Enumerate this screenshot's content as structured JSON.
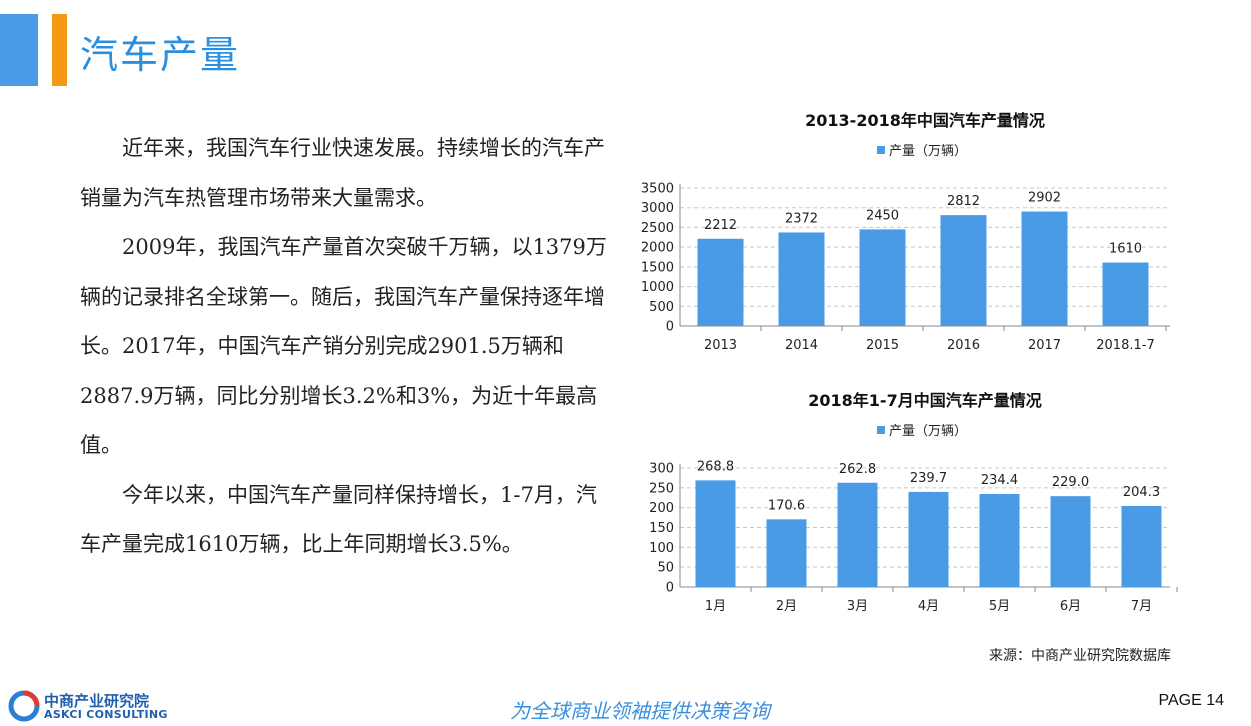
{
  "header": {
    "title": "汽车产量"
  },
  "body": {
    "paragraphs": [
      "近年来，我国汽车行业快速发展。持续增长的汽车产销量为汽车热管理市场带来大量需求。",
      "2009年，我国汽车产量首次突破千万辆，以1379万辆的记录排名全球第一。随后，我国汽车产量保持逐年增长。2017年，中国汽车产销分别完成2901.5万辆和2887.9万辆，同比分别增长3.2%和3%，为近十年最高值。",
      "今年以来，中国汽车产量同样保持增长，1-7月，汽车产量完成1610万辆，比上年同期增长3.5%。"
    ]
  },
  "colors": {
    "bar": "#4a9be6",
    "accent_orange": "#f39a12",
    "title_blue": "#2b8fe0"
  },
  "chart_data": [
    {
      "type": "bar",
      "title": "2013-2018年中国汽车产量情况",
      "legend": "top",
      "grid": true,
      "categories": [
        "2013",
        "2014",
        "2015",
        "2016",
        "2017",
        "2018.1-7"
      ],
      "series": [
        {
          "name": "产量（万辆）",
          "values": [
            2212,
            2372,
            2450,
            2812,
            2902,
            1610
          ]
        }
      ],
      "data_labels": [
        "2212",
        "2372",
        "2450",
        "2812",
        "2902",
        "1610"
      ],
      "yticks": [
        "0",
        "500",
        "1000",
        "1500",
        "2000",
        "2500",
        "3000",
        "3500"
      ],
      "ylim": [
        0,
        3500
      ]
    },
    {
      "type": "bar",
      "title": "2018年1-7月中国汽车产量情况",
      "legend": "top",
      "grid": true,
      "categories": [
        "1月",
        "2月",
        "3月",
        "4月",
        "5月",
        "6月",
        "7月"
      ],
      "series": [
        {
          "name": "产量（万辆）",
          "values": [
            268.8,
            170.6,
            262.8,
            239.7,
            234.4,
            229.0,
            204.3
          ]
        }
      ],
      "data_labels": [
        "268.8",
        "170.6",
        "262.8",
        "239.7",
        "234.4",
        "229.0",
        "204.3"
      ],
      "yticks": [
        "0",
        "50",
        "100",
        "150",
        "200",
        "250",
        "300"
      ],
      "ylim": [
        0,
        300
      ]
    }
  ],
  "footer": {
    "source": "来源：中商产业研究院数据库",
    "logo_cn": "中商产业研究院",
    "logo_en": "ASKCI CONSULTING",
    "slogan": "为全球商业领袖提供决策咨询",
    "page": "PAGE 14"
  }
}
